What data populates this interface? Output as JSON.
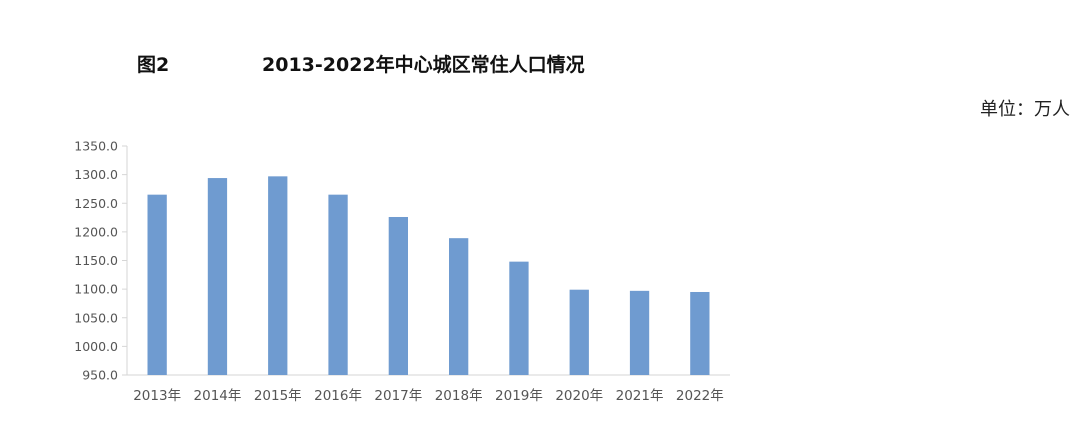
{
  "figure_label": "图2",
  "title": "2013-2022年中心城区常住人口情况",
  "unit_label": "单位：万人",
  "colors": {
    "bar": "#6f9bd0",
    "axis": "#d6d6d6"
  },
  "chart_data": {
    "type": "bar",
    "title": "2013-2022年中心城区常住人口情况",
    "categories": [
      "2013年",
      "2014年",
      "2015年",
      "2016年",
      "2017年",
      "2018年",
      "2019年",
      "2020年",
      "2021年",
      "2022年"
    ],
    "values": [
      1265,
      1294,
      1297,
      1265,
      1226,
      1189,
      1148,
      1099,
      1097,
      1095
    ],
    "ylim": [
      950,
      1350
    ],
    "yticks": [
      "950.0",
      "1000.0",
      "1050.0",
      "1100.0",
      "1150.0",
      "1200.0",
      "1250.0",
      "1300.0",
      "1350.0"
    ],
    "grid": false,
    "legend": "none"
  }
}
